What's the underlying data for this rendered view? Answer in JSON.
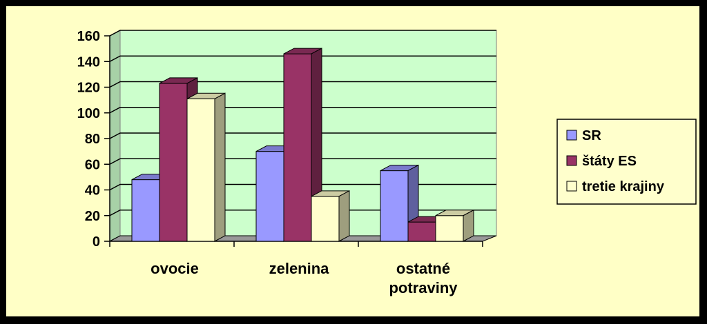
{
  "chart_data": {
    "type": "bar",
    "categories": [
      [
        "ovocie"
      ],
      [
        "zelenina"
      ],
      [
        "ostatné",
        "potraviny"
      ]
    ],
    "series": [
      {
        "name": "SR",
        "values": [
          48,
          70,
          55
        ],
        "color": "#9999ff"
      },
      {
        "name": "štáty ES",
        "values": [
          123,
          146,
          15
        ],
        "color": "#993366"
      },
      {
        "name": "tretie krajiny",
        "values": [
          111,
          35,
          20
        ],
        "color": "#ffffcc"
      }
    ],
    "y_ticks": [
      "0",
      "20",
      "40",
      "60",
      "80",
      "100",
      "120",
      "140",
      "160"
    ],
    "ylim": [
      0,
      160
    ],
    "grid": true,
    "legend_position": "right",
    "plot_wall_color": "#ccffcc",
    "plot_floor_color": "#999999"
  }
}
